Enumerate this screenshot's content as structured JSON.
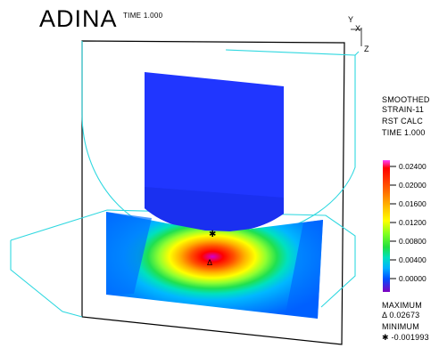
{
  "header": {
    "program_name": "ADINA",
    "time_label": "TIME 1.000"
  },
  "axis_triad": {
    "y_label": "Y",
    "x_label": "X",
    "z_label": "Z"
  },
  "legend": {
    "line1": "SMOOTHED",
    "line2": "STRAIN-11",
    "line3": "RST CALC",
    "line4": "TIME 1.000",
    "ticks": [
      "0.02400",
      "0.02000",
      "0.01600",
      "0.01200",
      "0.00800",
      "0.00400",
      "0.00000"
    ],
    "max_label": "MAXIMUM",
    "max_value": "Δ 0.02673",
    "min_label": "MINIMUM",
    "min_value": "✱ -0.001993",
    "colors": [
      "#d000d0",
      "#ff0000",
      "#ff6000",
      "#ffc000",
      "#ffff00",
      "#a0ff20",
      "#20e040",
      "#00e0c0",
      "#00b0ff",
      "#0070ff",
      "#1040ff",
      "#5020e0",
      "#8000c0"
    ]
  },
  "scene": {
    "punch_color": "#2036ff",
    "wire_color": "#30d8e0",
    "frame_color": "#000000"
  }
}
